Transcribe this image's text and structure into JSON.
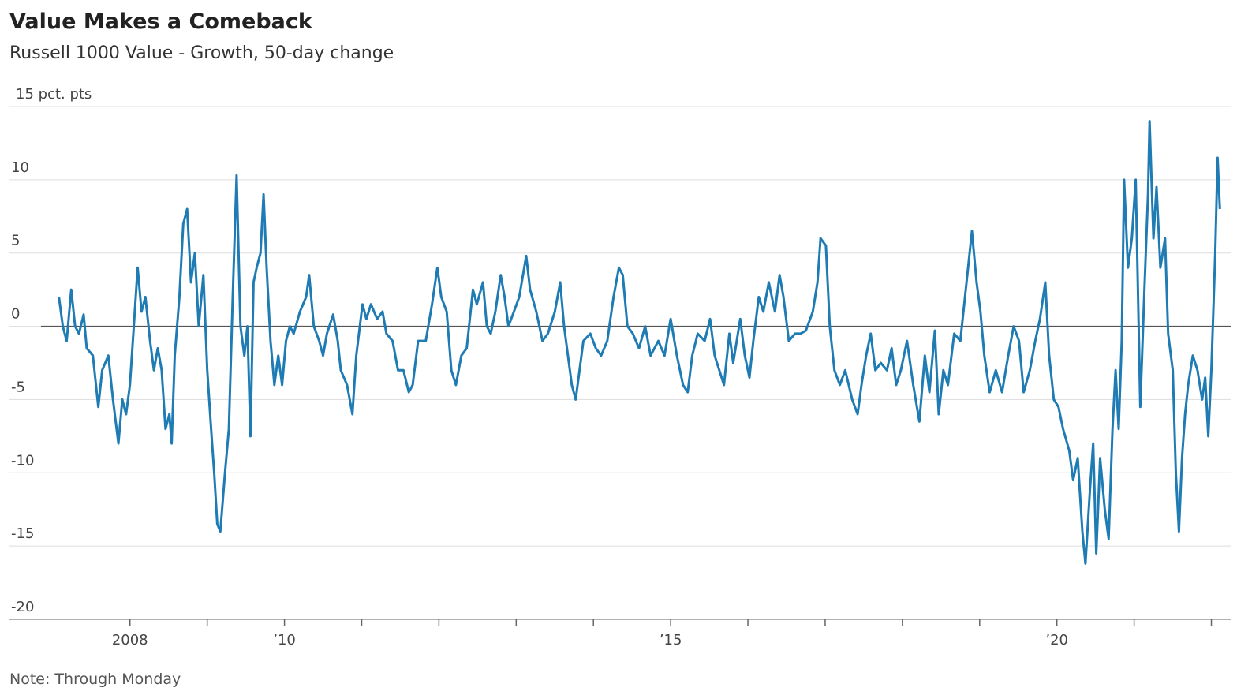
{
  "chart_data": {
    "type": "line",
    "title": "Value Makes a Comeback",
    "subtitle": "Russell 1000 Value - Growth, 50-day change",
    "note": "Note: Through Monday",
    "color": "#1f7bb3",
    "grid": true,
    "ylim": [
      -20,
      15
    ],
    "yticks": [
      -20,
      -15,
      -10,
      -5,
      0,
      5,
      10,
      {
        "value": 15,
        "label": "15 pct. pts"
      }
    ],
    "xlim": [
      2006.44,
      2022.25
    ],
    "xticks": [
      2008,
      {
        "value": 2010,
        "label": "’10"
      },
      {
        "value": 2015,
        "label": "’15"
      },
      {
        "value": 2020,
        "label": "’20"
      }
    ],
    "xticks_minor": [
      2009,
      2011,
      2012,
      2013,
      2014,
      2016,
      2017,
      2018,
      2019,
      2021,
      2022
    ],
    "x": [
      2007.08,
      2007.13,
      2007.18,
      2007.24,
      2007.29,
      2007.34,
      2007.4,
      2007.44,
      2007.52,
      2007.59,
      2007.64,
      2007.72,
      2007.78,
      2007.85,
      2007.9,
      2007.95,
      2008.0,
      2008.05,
      2008.1,
      2008.15,
      2008.2,
      2008.26,
      2008.31,
      2008.36,
      2008.41,
      2008.46,
      2008.51,
      2008.54,
      2008.58,
      2008.64,
      2008.69,
      2008.74,
      2008.79,
      2008.84,
      2008.89,
      2008.95,
      2009.0,
      2009.05,
      2009.09,
      2009.13,
      2009.17,
      2009.23,
      2009.28,
      2009.33,
      2009.38,
      2009.43,
      2009.48,
      2009.52,
      2009.56,
      2009.6,
      2009.64,
      2009.69,
      2009.73,
      2009.77,
      2009.82,
      2009.87,
      2009.92,
      2009.97,
      2010.02,
      2010.07,
      2010.12,
      2010.2,
      2010.28,
      2010.32,
      2010.38,
      2010.45,
      2010.5,
      2010.55,
      2010.63,
      2010.69,
      2010.73,
      2010.81,
      2010.88,
      2010.93,
      2011.01,
      2011.06,
      2011.12,
      2011.2,
      2011.27,
      2011.32,
      2011.4,
      2011.47,
      2011.54,
      2011.61,
      2011.66,
      2011.73,
      2011.83,
      2011.91,
      2011.98,
      2012.03,
      2012.1,
      2012.16,
      2012.22,
      2012.29,
      2012.36,
      2012.44,
      2012.49,
      2012.57,
      2012.62,
      2012.67,
      2012.73,
      2012.8,
      2012.85,
      2012.9,
      2012.97,
      2013.04,
      2013.13,
      2013.18,
      2013.26,
      2013.34,
      2013.41,
      2013.5,
      2013.57,
      2013.62,
      2013.67,
      2013.72,
      2013.77,
      2013.82,
      2013.87,
      2013.96,
      2014.03,
      2014.1,
      2014.18,
      2014.26,
      2014.33,
      2014.38,
      2014.44,
      2014.51,
      2014.59,
      2014.67,
      2014.74,
      2014.84,
      2014.92,
      2015.0,
      2015.08,
      2015.16,
      2015.22,
      2015.28,
      2015.35,
      2015.44,
      2015.51,
      2015.57,
      2015.63,
      2015.69,
      2015.76,
      2015.81,
      2015.9,
      2015.96,
      2016.02,
      2016.07,
      2016.14,
      2016.2,
      2016.27,
      2016.35,
      2016.41,
      2016.46,
      2016.53,
      2016.61,
      2016.68,
      2016.75,
      2016.84,
      2016.9,
      2016.94,
      2017.01,
      2017.06,
      2017.12,
      2017.19,
      2017.26,
      2017.35,
      2017.42,
      2017.47,
      2017.53,
      2017.59,
      2017.65,
      2017.72,
      2017.8,
      2017.86,
      2017.92,
      2017.98,
      2018.06,
      2018.14,
      2018.22,
      2018.29,
      2018.35,
      2018.42,
      2018.47,
      2018.53,
      2018.59,
      2018.67,
      2018.75,
      2018.81,
      2018.86,
      2018.9,
      2018.96,
      2019.01,
      2019.06,
      2019.13,
      2019.21,
      2019.29,
      2019.37,
      2019.44,
      2019.51,
      2019.57,
      2019.65,
      2019.72,
      2019.78,
      2019.85,
      2019.9,
      2019.96,
      2020.02,
      2020.08,
      2020.16,
      2020.21,
      2020.27,
      2020.33,
      2020.37,
      2020.43,
      2020.47,
      2020.51,
      2020.56,
      2020.62,
      2020.67,
      2020.72,
      2020.76,
      2020.8,
      2020.84,
      2020.87,
      2020.92,
      2020.97,
      2021.02,
      2021.08,
      2021.13,
      2021.18,
      2021.2,
      2021.25,
      2021.29,
      2021.34,
      2021.4,
      2021.44,
      2021.5,
      2021.54,
      2021.58,
      2021.62,
      2021.66,
      2021.7,
      2021.76,
      2021.82,
      2021.88,
      2021.92,
      2021.96,
      2022.0,
      2022.05,
      2022.08,
      2022.11
    ],
    "values": [
      2,
      0,
      -1,
      2.5,
      0,
      -0.5,
      0.8,
      -1.5,
      -2,
      -5.5,
      -3,
      -2,
      -5,
      -8,
      -5,
      -6,
      -4,
      0,
      4,
      1,
      2,
      -1,
      -3,
      -1.5,
      -3,
      -7,
      -6,
      -8,
      -2,
      2,
      7,
      8,
      3,
      5,
      0,
      3.5,
      -3,
      -7,
      -10,
      -13.5,
      -14,
      -10,
      -7,
      2,
      10.3,
      0,
      -2,
      0,
      -7.5,
      3,
      4,
      5,
      9,
      4,
      -1,
      -4,
      -2,
      -4,
      -1,
      0,
      -0.5,
      1,
      2,
      3.5,
      0,
      -1,
      -2,
      -0.5,
      0.8,
      -1,
      -3,
      -4,
      -6,
      -2,
      1.5,
      0.5,
      1.5,
      0.5,
      1,
      -0.5,
      -1,
      -3,
      -3,
      -4.5,
      -4,
      -1,
      -1,
      1.5,
      4,
      2,
      1,
      -3,
      -4,
      -2,
      -1.5,
      2.5,
      1.5,
      3,
      0,
      -0.5,
      1,
      3.5,
      2,
      0,
      1,
      2,
      4.8,
      2.5,
      1,
      -1,
      -0.5,
      1,
      3,
      0,
      -2,
      -4,
      -5,
      -3,
      -1,
      -0.5,
      -1.5,
      -2,
      -1,
      2,
      4,
      3.5,
      0,
      -0.5,
      -1.5,
      0,
      -2,
      -1,
      -2,
      0.5,
      -2,
      -4,
      -4.5,
      -2,
      -0.5,
      -1,
      0.5,
      -2,
      -3,
      -4,
      -0.5,
      -2.5,
      0.5,
      -2,
      -3.5,
      -1,
      2,
      1,
      3,
      1,
      3.5,
      2,
      -1,
      -0.5,
      -0.5,
      -0.3,
      1,
      3,
      6,
      5.5,
      0,
      -3,
      -4,
      -3,
      -5,
      -6,
      -4,
      -2,
      -0.5,
      -3,
      -2.5,
      -3,
      -1.5,
      -4,
      -3,
      -1,
      -4,
      -6.5,
      -2,
      -4.5,
      -0.3,
      -6,
      -3,
      -4,
      -0.5,
      -1,
      2,
      4.5,
      6.5,
      3,
      1,
      -2,
      -4.5,
      -3,
      -4.5,
      -2,
      0,
      -1,
      -4.5,
      -3,
      -1,
      0.5,
      3,
      -2,
      -5,
      -5.5,
      -7,
      -8.5,
      -10.5,
      -9,
      -14,
      -16.2,
      -11,
      -8,
      -15.5,
      -9,
      -12.5,
      -14.5,
      -7,
      -3,
      -7,
      -1,
      10,
      4,
      6,
      10,
      -5.5,
      2,
      9,
      14,
      6,
      9.5,
      4,
      6,
      -0.5,
      -3,
      -10,
      -14,
      -9,
      -6,
      -4,
      -2,
      -3,
      -5,
      -3.5,
      -7.5,
      -3,
      5,
      11.5,
      8
    ]
  }
}
